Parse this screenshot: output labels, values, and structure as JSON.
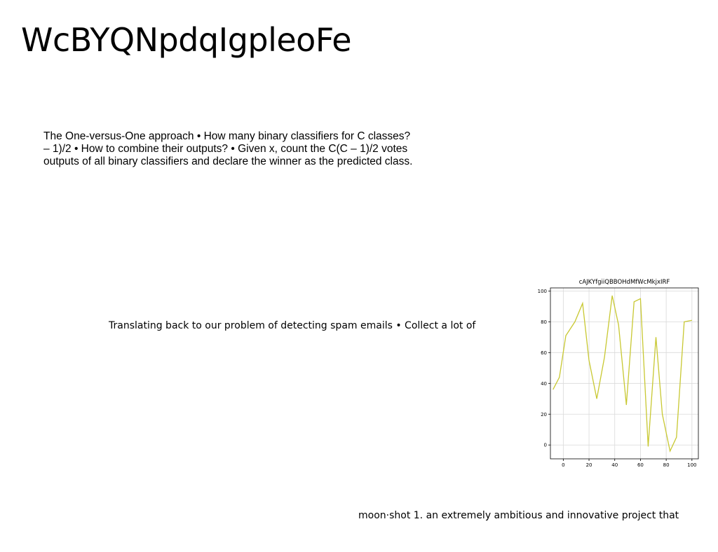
{
  "slide": {
    "title": "WcBYQNpdqIgpleoFe",
    "paragraph_lines": [
      "The One-versus-One approach • How many binary classifiers for C classes?",
      "– 1)/2 • How to combine their outputs? • Given x, count the C(C – 1)/2 votes",
      "outputs of all binary classifiers and declare the winner as the predicted class."
    ],
    "caption": "Translating back to our problem of detecting spam emails • Collect a lot of",
    "footer": "moon·shot 1. an extremely ambitious and innovative project that"
  },
  "chart_data": {
    "type": "line",
    "title": "cAJKYfgiiQBBOHdMfWcMkjxIRF",
    "xlabel": "",
    "ylabel": "",
    "xlim": [
      -10,
      105
    ],
    "ylim": [
      -9,
      102
    ],
    "xticks": [
      0,
      20,
      40,
      60,
      80,
      100
    ],
    "yticks": [
      0,
      20,
      40,
      60,
      80,
      100
    ],
    "grid": true,
    "colors": {
      "line": "#c8c832",
      "grid": "#d9d9d9",
      "frame": "#000000"
    },
    "series": [
      {
        "x": [
          -8,
          -3,
          2,
          9,
          15,
          20,
          26,
          32,
          38,
          43,
          49,
          55,
          60,
          66,
          72,
          77,
          83,
          88,
          94,
          100
        ],
        "values": [
          36,
          44,
          71,
          80,
          92,
          55,
          30,
          57,
          97,
          78,
          26,
          93,
          95,
          -1,
          70,
          20,
          -4,
          5,
          80,
          81
        ]
      }
    ]
  }
}
